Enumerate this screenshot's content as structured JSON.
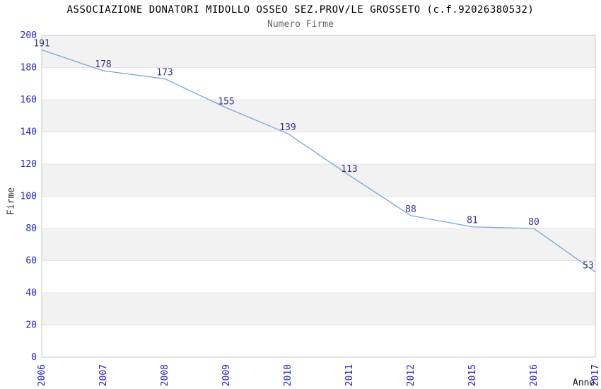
{
  "chart_data": {
    "type": "line",
    "title": "ASSOCIAZIONE DONATORI MIDOLLO OSSEO SEZ.PROV/LE GROSSETO (c.f.92026380532)",
    "subtitle": "Numero Firme",
    "xlabel": "Anno",
    "ylabel": "Firme",
    "categories": [
      "2006",
      "2007",
      "2008",
      "2009",
      "2010",
      "2011",
      "2012",
      "2015",
      "2016",
      "2017"
    ],
    "values": [
      191,
      178,
      173,
      155,
      139,
      113,
      88,
      81,
      80,
      53
    ],
    "ylim": [
      0,
      200
    ],
    "ytick_step": 20,
    "grid": "horizontal-bands-alternating",
    "legend": "none",
    "point_labels_shown": true,
    "colors": {
      "line": "#7aa5de",
      "point_label": "#333388",
      "axis_tick_label": "#2222cc",
      "band_fill": "#f2f2f2",
      "grid_line": "#e3e3e3",
      "plot_border": "#c9c9c9",
      "title_text": "#000000",
      "subtitle_text": "#666666",
      "axis_title_text": "#333333"
    }
  }
}
